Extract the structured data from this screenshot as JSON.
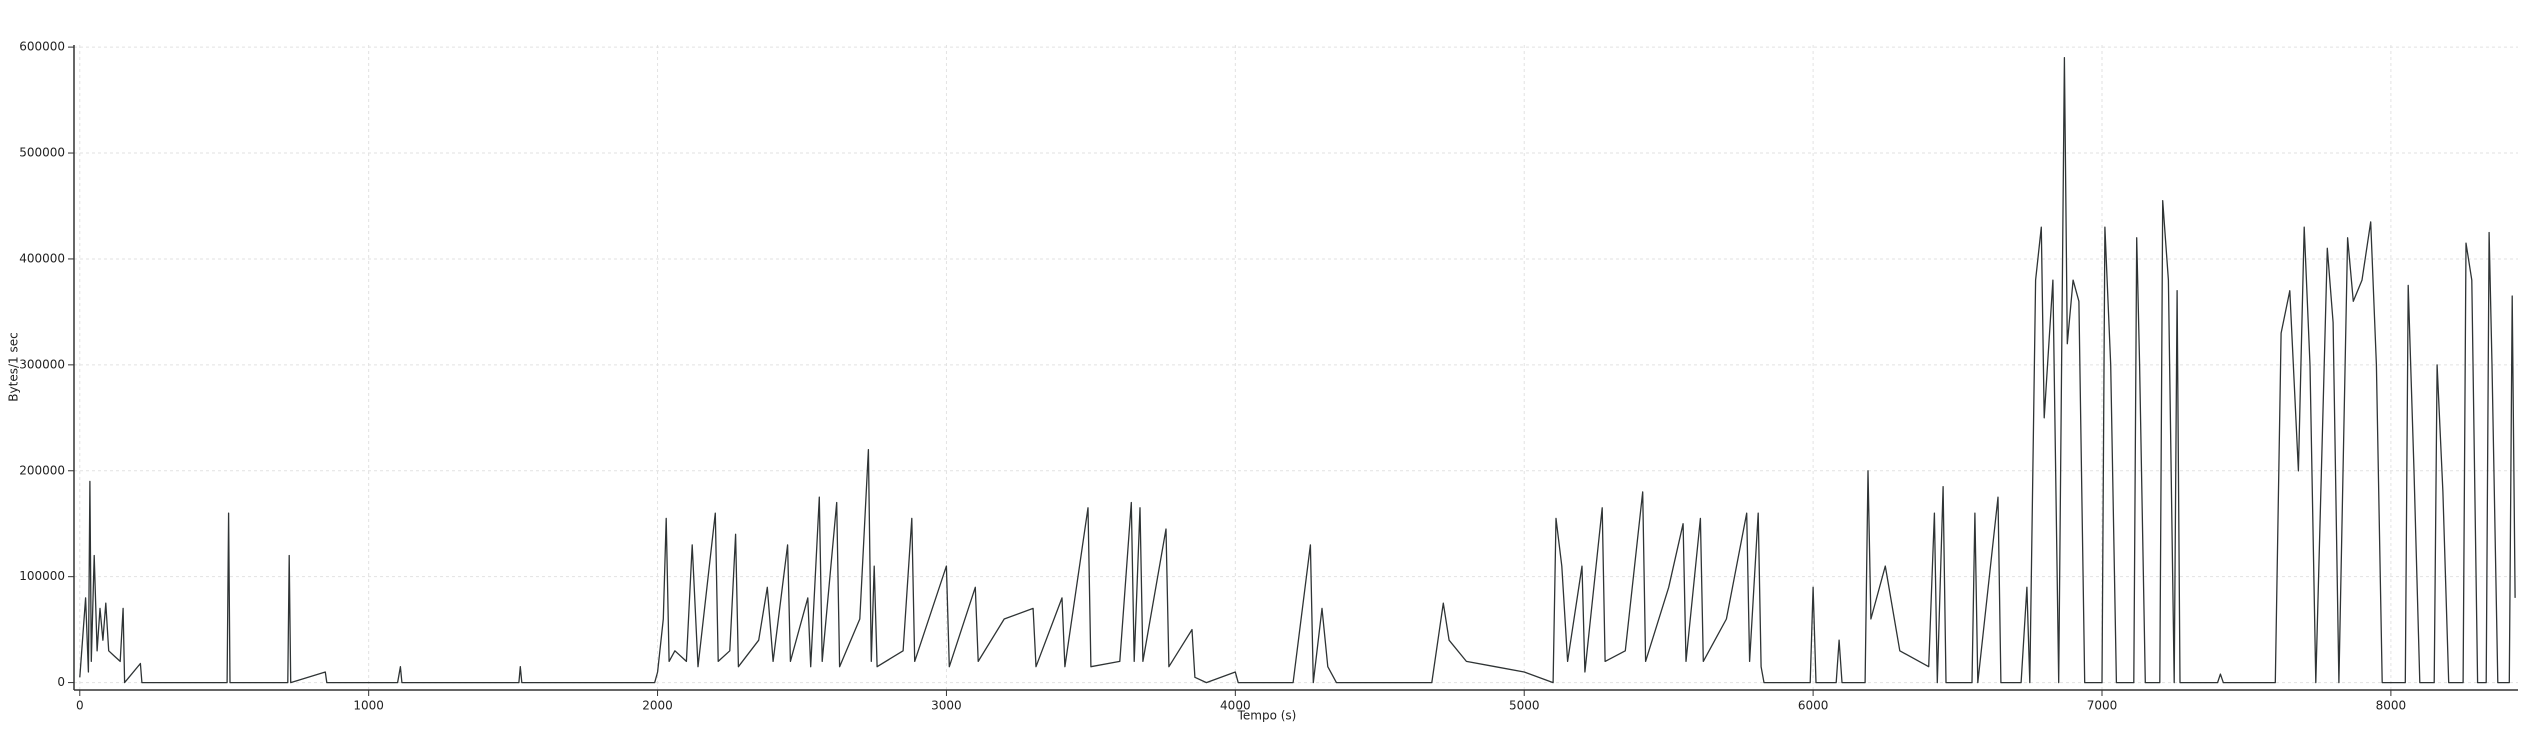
{
  "chart_data": {
    "type": "line",
    "xlabel": "Tempo (s)",
    "ylabel": "Bytes/1 sec",
    "xlim": [
      -20,
      8440
    ],
    "ylim": [
      -7000,
      602000
    ],
    "xticks": [
      0,
      1000,
      2000,
      3000,
      4000,
      5000,
      6000,
      7000,
      8000
    ],
    "yticks": [
      0,
      100000,
      200000,
      300000,
      400000,
      500000,
      600000
    ],
    "grid": true,
    "x": [
      0,
      20,
      30,
      35,
      40,
      50,
      60,
      70,
      80,
      90,
      100,
      120,
      140,
      150,
      155,
      210,
      215,
      510,
      515,
      520,
      720,
      725,
      730,
      850,
      855,
      1100,
      1110,
      1115,
      1520,
      1525,
      1530,
      1990,
      2000,
      2020,
      2030,
      2040,
      2060,
      2100,
      2120,
      2140,
      2200,
      2210,
      2250,
      2270,
      2280,
      2350,
      2380,
      2400,
      2450,
      2460,
      2520,
      2530,
      2560,
      2570,
      2620,
      2630,
      2700,
      2730,
      2740,
      2750,
      2760,
      2850,
      2880,
      2890,
      3000,
      3010,
      3100,
      3110,
      3200,
      3300,
      3310,
      3400,
      3410,
      3490,
      3500,
      3600,
      3640,
      3650,
      3670,
      3680,
      3760,
      3770,
      3850,
      3860,
      3900,
      4000,
      4010,
      4200,
      4260,
      4270,
      4300,
      4320,
      4350,
      4680,
      4720,
      4740,
      4800,
      4900,
      5000,
      5100,
      5110,
      5130,
      5150,
      5200,
      5210,
      5270,
      5280,
      5350,
      5410,
      5420,
      5500,
      5550,
      5560,
      5610,
      5620,
      5700,
      5770,
      5780,
      5810,
      5820,
      5830,
      5990,
      6000,
      6010,
      6080,
      6090,
      6100,
      6180,
      6190,
      6200,
      6250,
      6300,
      6400,
      6420,
      6430,
      6450,
      6460,
      6550,
      6560,
      6570,
      6640,
      6650,
      6720,
      6740,
      6750,
      6770,
      6790,
      6800,
      6830,
      6850,
      6870,
      6880,
      6900,
      6920,
      6940,
      7000,
      7010,
      7030,
      7050,
      7110,
      7120,
      7130,
      7150,
      7200,
      7210,
      7230,
      7250,
      7260,
      7270,
      7400,
      7410,
      7420,
      7600,
      7620,
      7650,
      7680,
      7700,
      7720,
      7740,
      7780,
      7800,
      7820,
      7850,
      7870,
      7900,
      7930,
      7950,
      7970,
      8050,
      8060,
      8080,
      8100,
      8150,
      8160,
      8180,
      8200,
      8250,
      8260,
      8280,
      8300,
      8330,
      8340,
      8350,
      8370,
      8410,
      8420,
      8430
    ],
    "series": [
      {
        "name": "Bytes/1 sec",
        "color": "#2f3435",
        "values": [
          5000,
          80000,
          10000,
          190000,
          20000,
          120000,
          30000,
          70000,
          40000,
          75000,
          30000,
          25000,
          20000,
          70000,
          0,
          18000,
          0,
          0,
          160000,
          0,
          0,
          120000,
          0,
          10000,
          0,
          0,
          15000,
          0,
          0,
          15000,
          0,
          0,
          10000,
          60000,
          155000,
          20000,
          30000,
          20000,
          130000,
          15000,
          160000,
          20000,
          30000,
          140000,
          15000,
          40000,
          90000,
          20000,
          130000,
          20000,
          80000,
          15000,
          175000,
          20000,
          170000,
          15000,
          60000,
          220000,
          20000,
          110000,
          15000,
          30000,
          155000,
          20000,
          110000,
          15000,
          90000,
          20000,
          60000,
          70000,
          15000,
          80000,
          15000,
          165000,
          15000,
          20000,
          170000,
          20000,
          165000,
          20000,
          145000,
          15000,
          50000,
          5000,
          0,
          10000,
          0,
          0,
          130000,
          0,
          70000,
          15000,
          0,
          0,
          75000,
          40000,
          20000,
          15000,
          10000,
          0,
          155000,
          110000,
          20000,
          110000,
          10000,
          165000,
          20000,
          30000,
          180000,
          20000,
          90000,
          150000,
          20000,
          155000,
          20000,
          60000,
          160000,
          20000,
          160000,
          15000,
          0,
          0,
          90000,
          0,
          0,
          40000,
          0,
          0,
          200000,
          60000,
          110000,
          30000,
          15000,
          160000,
          0,
          185000,
          0,
          0,
          160000,
          0,
          175000,
          0,
          0,
          90000,
          0,
          380000,
          430000,
          250000,
          380000,
          0,
          590000,
          320000,
          380000,
          360000,
          0,
          0,
          430000,
          300000,
          0,
          0,
          420000,
          300000,
          0,
          0,
          455000,
          380000,
          0,
          370000,
          0,
          0,
          8000,
          0,
          0,
          330000,
          370000,
          200000,
          430000,
          300000,
          0,
          410000,
          340000,
          0,
          420000,
          360000,
          380000,
          435000,
          300000,
          0,
          0,
          375000,
          200000,
          0,
          0,
          300000,
          180000,
          0,
          0,
          415000,
          380000,
          0,
          0,
          425000,
          300000,
          0,
          0,
          365000,
          80000
        ]
      }
    ]
  }
}
